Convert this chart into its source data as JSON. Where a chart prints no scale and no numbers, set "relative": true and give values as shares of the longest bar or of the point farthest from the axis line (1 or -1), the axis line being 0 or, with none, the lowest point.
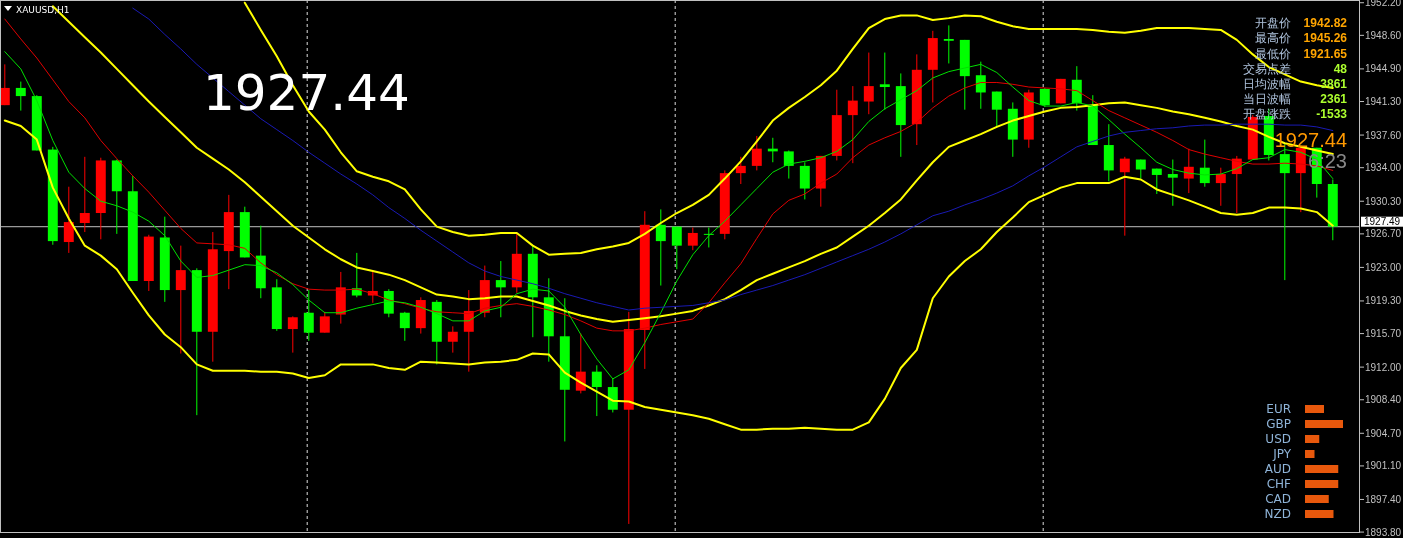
{
  "chart_data": [
    {
      "type": "candlestick",
      "title": "XAUUSD,H1",
      "categories": [
        null,
        null,
        null,
        null,
        null,
        null,
        null,
        null,
        null,
        null,
        null,
        null,
        null,
        null,
        null,
        null,
        null,
        null,
        null,
        null,
        null,
        null,
        null,
        null,
        null,
        null,
        null,
        null,
        null,
        null,
        null,
        null,
        null,
        null,
        null,
        null,
        null,
        null,
        null,
        null,
        null,
        null,
        null,
        null,
        null,
        null,
        null,
        null,
        null,
        null,
        null,
        null,
        null,
        null,
        null,
        null,
        null,
        null,
        null,
        null,
        null,
        null,
        null,
        null,
        null,
        null,
        null,
        null,
        null,
        null,
        null,
        null,
        null,
        null,
        null,
        null,
        null,
        null,
        null,
        null,
        null,
        null,
        null,
        null
      ],
      "ohlc": [
        [
          1940.9,
          1945.4,
          1940.9,
          1942.8
        ],
        [
          1942.8,
          1943.5,
          1940.3,
          1941.9
        ],
        [
          1941.9,
          1942.0,
          1935.9,
          1935.9
        ],
        [
          1936.0,
          1936.3,
          1925.5,
          1925.9
        ],
        [
          1925.8,
          1931.9,
          1924.6,
          1928.0
        ],
        [
          1927.9,
          1935.2,
          1926.9,
          1929.0
        ],
        [
          1929.0,
          1935.1,
          1926.1,
          1934.8
        ],
        [
          1934.8,
          1934.9,
          1926.7,
          1931.4
        ],
        [
          1931.4,
          1933.1,
          1921.5,
          1921.5
        ],
        [
          1921.5,
          1926.6,
          1920.4,
          1926.4
        ],
        [
          1926.3,
          1928.6,
          1919.2,
          1920.5
        ],
        [
          1920.5,
          1925.4,
          1913.5,
          1922.7
        ],
        [
          1922.7,
          1922.9,
          1906.7,
          1915.9
        ],
        [
          1915.9,
          1926.9,
          1912.6,
          1925.0
        ],
        [
          1924.8,
          1931.0,
          1920.6,
          1929.1
        ],
        [
          1929.1,
          1929.7,
          1924.1,
          1924.1
        ],
        [
          1924.3,
          1927.6,
          1919.6,
          1920.7
        ],
        [
          1920.8,
          1921.7,
          1916.0,
          1916.2
        ],
        [
          1916.2,
          1917.6,
          1913.6,
          1917.5
        ],
        [
          1918.0,
          1920.5,
          1914.9,
          1915.8
        ],
        [
          1915.8,
          1918.1,
          1915.8,
          1917.6
        ],
        [
          1917.8,
          1922.5,
          1916.8,
          1920.8
        ],
        [
          1920.7,
          1924.6,
          1919.7,
          1919.9
        ],
        [
          1919.9,
          1922.6,
          1919.1,
          1920.4
        ],
        [
          1920.4,
          1920.6,
          1917.5,
          1917.9
        ],
        [
          1918.0,
          1918.1,
          1914.9,
          1916.3
        ],
        [
          1916.3,
          1919.7,
          1915.7,
          1919.4
        ],
        [
          1919.2,
          1919.4,
          1912.3,
          1914.8
        ],
        [
          1914.8,
          1916.5,
          1913.6,
          1915.9
        ],
        [
          1915.9,
          1920.5,
          1911.5,
          1918.2
        ],
        [
          1918.0,
          1923.2,
          1917.5,
          1921.6
        ],
        [
          1921.6,
          1923.7,
          1917.5,
          1920.8
        ],
        [
          1920.8,
          1926.7,
          1920.2,
          1924.5
        ],
        [
          1924.5,
          1925.4,
          1915.3,
          1919.7
        ],
        [
          1919.7,
          1921.8,
          1912.6,
          1915.4
        ],
        [
          1915.4,
          1919.6,
          1903.8,
          1909.5
        ],
        [
          1909.4,
          1915.7,
          1909.1,
          1911.5
        ],
        [
          1911.5,
          1912.2,
          1906.6,
          1909.8
        ],
        [
          1909.8,
          1910.8,
          1907.0,
          1907.3
        ],
        [
          1907.3,
          1918.1,
          1894.7,
          1916.2
        ],
        [
          1916.1,
          1929.2,
          1911.8,
          1927.7
        ],
        [
          1927.7,
          1929.4,
          1921.0,
          1925.9
        ],
        [
          1927.5,
          1927.5,
          1922.8,
          1925.4
        ],
        [
          1925.4,
          1927.4,
          1924.9,
          1926.8
        ],
        [
          1926.7,
          1927.4,
          1925.2,
          1926.6
        ],
        [
          1926.7,
          1933.7,
          1926.1,
          1933.4
        ],
        [
          1933.4,
          1935.2,
          1932.2,
          1934.2
        ],
        [
          1934.2,
          1937.5,
          1933.7,
          1936.1
        ],
        [
          1936.1,
          1937.3,
          1934.6,
          1935.8
        ],
        [
          1935.8,
          1935.9,
          1932.8,
          1934.2
        ],
        [
          1934.2,
          1934.6,
          1930.5,
          1931.7
        ],
        [
          1931.7,
          1935.3,
          1929.7,
          1935.3
        ],
        [
          1935.3,
          1942.6,
          1934.8,
          1939.8
        ],
        [
          1939.8,
          1943.0,
          1934.5,
          1941.4
        ],
        [
          1941.3,
          1946.7,
          1939.9,
          1943.0
        ],
        [
          1943.2,
          1946.7,
          1940.4,
          1942.9
        ],
        [
          1943.0,
          1944.4,
          1935.2,
          1938.7
        ],
        [
          1938.8,
          1946.5,
          1936.5,
          1944.8
        ],
        [
          1944.8,
          1949.1,
          1941.2,
          1948.3
        ],
        [
          1948.2,
          1949.7,
          1945.5,
          1948.0
        ],
        [
          1948.1,
          1948.1,
          1940.4,
          1944.1
        ],
        [
          1944.2,
          1945.7,
          1940.5,
          1942.3
        ],
        [
          1942.4,
          1942.4,
          1938.5,
          1940.4
        ],
        [
          1940.5,
          1941.2,
          1935.2,
          1937.1
        ],
        [
          1937.1,
          1942.6,
          1936.2,
          1942.3
        ],
        [
          1942.7,
          1942.8,
          1940.7,
          1940.9
        ],
        [
          1941.1,
          1943.8,
          1941.1,
          1943.8
        ],
        [
          1943.7,
          1945.2,
          1940.3,
          1941.1
        ],
        [
          1940.9,
          1942.0,
          1936.5,
          1936.5
        ],
        [
          1936.5,
          1938.8,
          1932.5,
          1933.7
        ],
        [
          1933.5,
          1935.2,
          1926.5,
          1935.0
        ],
        [
          1934.9,
          1934.9,
          1932.8,
          1933.8
        ],
        [
          1933.9,
          1933.9,
          1931.1,
          1933.2
        ],
        [
          1933.3,
          1934.9,
          1929.8,
          1932.9
        ],
        [
          1932.8,
          1936.1,
          1931.2,
          1934.1
        ],
        [
          1934.0,
          1937.1,
          1931.9,
          1932.3
        ],
        [
          1932.3,
          1934.0,
          1929.8,
          1933.3
        ],
        [
          1933.3,
          1935.3,
          1929.0,
          1935.0
        ],
        [
          1934.9,
          1939.8,
          1934.9,
          1939.6
        ],
        [
          1939.7,
          1940.5,
          1934.8,
          1935.4
        ],
        [
          1935.5,
          1936.6,
          1921.6,
          1933.4
        ],
        [
          1933.4,
          1936.4,
          1929.1,
          1936.2
        ],
        [
          1936.2,
          1936.2,
          1930.7,
          1932.2
        ],
        [
          1932.2,
          1932.7,
          1926.0,
          1927.5
        ]
      ],
      "colors": [
        "#ff0000",
        "#00ff00",
        "#00ff00",
        "#00ff00",
        "#ff0000",
        "#ff0000",
        "#ff0000",
        "#00ff00",
        "#00ff00",
        "#ff0000",
        "#00ff00",
        "#ff0000",
        "#00ff00",
        "#ff0000",
        "#ff0000",
        "#00ff00",
        "#00ff00",
        "#00ff00",
        "#ff0000",
        "#00ff00",
        "#ff0000",
        "#ff0000",
        "#00ff00",
        "#ff0000",
        "#00ff00",
        "#00ff00",
        "#ff0000",
        "#00ff00",
        "#ff0000",
        "#ff0000",
        "#ff0000",
        "#00ff00",
        "#ff0000",
        "#00ff00",
        "#00ff00",
        "#00ff00",
        "#ff0000",
        "#00ff00",
        "#00ff00",
        "#ff0000",
        "#ff0000",
        "#00ff00",
        "#00ff00",
        "#ff0000",
        "#00ff00",
        "#ff0000",
        "#ff0000",
        "#ff0000",
        "#00ff00",
        "#00ff00",
        "#00ff00",
        "#ff0000",
        "#ff0000",
        "#ff0000",
        "#ff0000",
        "#00ff00",
        "#00ff00",
        "#ff0000",
        "#ff0000",
        "#00ff00",
        "#00ff00",
        "#00ff00",
        "#00ff00",
        "#00ff00",
        "#ff0000",
        "#00ff00",
        "#ff0000",
        "#00ff00",
        "#00ff00",
        "#00ff00",
        "#ff0000",
        "#00ff00",
        "#00ff00",
        "#00ff00",
        "#ff0000",
        "#00ff00",
        "#ff0000",
        "#ff0000",
        "#ff0000",
        "#00ff00",
        "#00ff00",
        "#ff0000",
        "#00ff00",
        "#00ff00"
      ],
      "series": [
        {
          "type": "line",
          "color": "#ffff00",
          "values": [
            null,
            null,
            null,
            null,
            null,
            null,
            null,
            null,
            null,
            null,
            null,
            null,
            null,
            null,
            null,
            1952.2,
            1949.2,
            1946.3,
            1943.1,
            1940.2,
            1938.2,
            1935.7,
            1933.6,
            1933.0,
            1932.5,
            1931.6,
            1929.4,
            1927.5,
            1926.9,
            1926.5,
            1926.6,
            1926.8,
            1926.8,
            1925.4,
            1924.4,
            1924.5,
            1924.6,
            1925.0,
            1925.3,
            1925.7,
            1926.7,
            1927.9,
            1929.0,
            1929.9,
            1931.0,
            1932.8,
            1934.7,
            1936.9,
            1939.2,
            1940.6,
            1941.8,
            1943.1,
            1944.7,
            1947.1,
            1949.4,
            1950.4,
            1950.8,
            1950.8,
            1950.3,
            1950.5,
            1950.8,
            1950.7,
            1950.1,
            1949.6,
            1949.3,
            1949.3,
            1949.3,
            1949.3,
            1949.2,
            1949.0,
            1948.9,
            1949.1,
            1949.4,
            1949.4,
            1949.4,
            1949.3,
            1949.2,
            1948.1,
            1946.5,
            1945.1,
            1944.3,
            1943.5,
            1943.1,
            1942.8
          ]
        },
        {
          "type": "line",
          "color": "#ffff00",
          "values": [
            null,
            null,
            null,
            1951.8,
            1950.1,
            1948.4,
            1946.7,
            1944.9,
            1943.1,
            1941.3,
            1939.6,
            1937.9,
            1936.2,
            1935.0,
            1933.8,
            1932.4,
            1930.8,
            1929.2,
            1927.6,
            1926.3,
            1925.0,
            1923.9,
            1923.0,
            1922.6,
            1922.2,
            1921.6,
            1920.8,
            1920.0,
            1919.8,
            1919.5,
            1919.6,
            1919.8,
            1919.8,
            1919.3,
            1918.8,
            1918.2,
            1917.7,
            1917.3,
            1917.0,
            1917.2,
            1917.4,
            1917.6,
            1917.9,
            1918.2,
            1918.8,
            1919.5,
            1920.5,
            1921.6,
            1922.3,
            1923.0,
            1923.7,
            1924.5,
            1925.2,
            1926.4,
            1927.6,
            1929.0,
            1930.5,
            1932.6,
            1934.6,
            1936.3,
            1937.0,
            1937.7,
            1938.5,
            1939.2,
            1939.7,
            1940.2,
            1940.6,
            1940.7,
            1940.9,
            1941.1,
            1941.2,
            1940.9,
            1940.6,
            1940.2,
            1939.9,
            1939.5,
            1939.1,
            1938.6,
            1938.2,
            1937.4,
            1936.7,
            1936.3,
            1935.9,
            1935.5
          ]
        },
        {
          "type": "line",
          "color": "#ffff00",
          "values": [
            1939.2,
            1938.6,
            1937.1,
            1931.8,
            1928.4,
            1925.4,
            1924.3,
            1922.8,
            1920.2,
            1917.7,
            1915.6,
            1914.2,
            1912.3,
            1911.6,
            1911.6,
            1911.6,
            1911.5,
            1911.5,
            1911.3,
            1910.8,
            1911.1,
            1912.3,
            1912.3,
            1912.3,
            1911.9,
            1911.7,
            1912.6,
            1912.5,
            1912.4,
            1912.3,
            1912.5,
            1912.6,
            1912.8,
            1913.5,
            1913.4,
            1911.4,
            1910.3,
            1909.3,
            1908.3,
            1908.2,
            1907.6,
            1907.3,
            1907.0,
            1906.7,
            1906.3,
            1905.7,
            1905.1,
            1905.1,
            1905.2,
            1905.2,
            1905.3,
            1905.2,
            1905.1,
            1905.1,
            1905.9,
            1908.5,
            1911.9,
            1913.9,
            1919.6,
            1922.0,
            1923.7,
            1925.0,
            1926.9,
            1928.5,
            1930.2,
            1931.0,
            1931.8,
            1932.3,
            1932.3,
            1932.3,
            1933.0,
            1932.7,
            1931.6,
            1931.0,
            1930.4,
            1929.7,
            1929.0,
            1928.8,
            1929.0,
            1929.6,
            1929.6,
            1929.5,
            1929.1,
            1927.6
          ]
        },
        {
          "type": "line",
          "color": "#e00000",
          "values": [
            1950.4,
            1948.2,
            1946.1,
            1943.7,
            1941.3,
            1939.5,
            1937.0,
            1935.0,
            1933.1,
            1931.3,
            1929.3,
            1927.3,
            1925.7,
            1925.6,
            1925.5,
            1925.1,
            1923.5,
            1922.2,
            1921.2,
            1920.6,
            1920.5,
            1920.5,
            1920.6,
            1920.1,
            1919.4,
            1919.0,
            1918.5,
            1918.1,
            1918.0,
            1917.9,
            1918.5,
            1918.8,
            1919.0,
            1918.7,
            1918.3,
            1917.8,
            1917.1,
            1916.3,
            1916.0,
            1916.0,
            1916.3,
            1916.7,
            1917.0,
            1917.3,
            1919.1,
            1921.3,
            1923.4,
            1926.2,
            1928.9,
            1930.4,
            1931.1,
            1932.3,
            1933.3,
            1935.1,
            1936.5,
            1937.3,
            1938.0,
            1939.0,
            1940.6,
            1941.9,
            1942.8,
            1943.4,
            1943.4,
            1943.2,
            1942.9,
            1942.8,
            1942.7,
            1942.5,
            1941.4,
            1940.3,
            1939.5,
            1938.7,
            1937.9,
            1937.0,
            1936.0,
            1935.5,
            1935.1,
            1934.7,
            1934.4,
            1934.4,
            1934.5,
            1934.4,
            1934.2,
            1933.7
          ]
        },
        {
          "type": "line",
          "color": "#00e000",
          "values": [
            1946.8,
            1944.9,
            1941.4,
            1937.0,
            1933.5,
            1931.7,
            1930.3,
            1929.8,
            1929.1,
            1928.1,
            1926.5,
            1923.7,
            1921.9,
            1922.1,
            1922.7,
            1923.3,
            1923.2,
            1922.4,
            1921.1,
            1919.4,
            1918.0,
            1918.0,
            1918.5,
            1918.9,
            1919.3,
            1919.1,
            1918.6,
            1917.9,
            1917.1,
            1917.1,
            1918.2,
            1918.6,
            1920.1,
            1920.6,
            1920.4,
            1918.6,
            1915.6,
            1912.9,
            1910.7,
            1911.7,
            1914.7,
            1918.0,
            1921.5,
            1924.4,
            1926.5,
            1928.1,
            1929.9,
            1931.7,
            1933.5,
            1934.4,
            1934.7,
            1935.1,
            1935.8,
            1937.1,
            1939.1,
            1940.5,
            1941.5,
            1942.5,
            1943.9,
            1944.6,
            1945.0,
            1945.4,
            1944.5,
            1942.9,
            1941.4,
            1940.8,
            1940.8,
            1941.2,
            1940.8,
            1939.3,
            1937.7,
            1936.2,
            1934.6,
            1933.8,
            1933.4,
            1933.2,
            1933.3,
            1933.9,
            1934.9,
            1935.1,
            1936.0,
            1935.7,
            1934.9,
            1932.8
          ]
        },
        {
          "type": "line",
          "color": "#1a1ab4",
          "values": [
            null,
            null,
            null,
            null,
            null,
            null,
            null,
            null,
            1951.6,
            1950.4,
            1948.7,
            1947.1,
            1945.4,
            1943.9,
            1942.4,
            1940.9,
            1939.4,
            1938.2,
            1937.0,
            1935.7,
            1934.5,
            1933.3,
            1932.2,
            1931.0,
            1929.6,
            1928.4,
            1927.1,
            1925.9,
            1924.7,
            1923.5,
            1922.6,
            1922.0,
            1921.6,
            1921.2,
            1920.7,
            1920.1,
            1919.6,
            1919.1,
            1918.7,
            1918.3,
            1918.5,
            1918.6,
            1918.7,
            1918.8,
            1919.1,
            1919.4,
            1920.0,
            1920.5,
            1921.0,
            1921.6,
            1922.2,
            1922.9,
            1923.6,
            1924.3,
            1925.0,
            1925.8,
            1926.7,
            1927.7,
            1928.7,
            1929.2,
            1929.9,
            1930.5,
            1931.2,
            1932.0,
            1933.1,
            1934.1,
            1935.2,
            1936.3,
            1936.9,
            1937.5,
            1937.9,
            1938.1,
            1938.3,
            1938.4,
            1938.6,
            1938.7,
            1938.7,
            1938.8,
            1938.8,
            1938.8,
            1938.7,
            1938.7,
            1938.5,
            1938.1
          ]
        }
      ],
      "ylim": [
        1893.7,
        1952.5
      ],
      "yticks": [
        {
          "value": 1952.2,
          "label": "1952.20"
        },
        {
          "value": 1948.6,
          "label": "1948.60"
        },
        {
          "value": 1944.9,
          "label": "1944.90"
        },
        {
          "value": 1941.3,
          "label": "1941.30"
        },
        {
          "value": 1937.6,
          "label": "1937.60"
        },
        {
          "value": 1934.0,
          "label": "1934.00"
        },
        {
          "value": 1930.3,
          "label": "1930.30"
        },
        {
          "value": 1926.7,
          "label": "1926.70"
        },
        {
          "value": 1923.0,
          "label": "1923.00"
        },
        {
          "value": 1919.3,
          "label": "1919.30"
        },
        {
          "value": 1915.7,
          "label": "1915.70"
        },
        {
          "value": 1912.0,
          "label": "1912.00"
        },
        {
          "value": 1908.4,
          "label": "1908.40"
        },
        {
          "value": 1904.7,
          "label": "1904.70"
        },
        {
          "value": 1901.1,
          "label": "1901.10"
        },
        {
          "value": 1897.4,
          "label": "1897.40"
        },
        {
          "value": 1893.8,
          "label": "1893.80"
        }
      ],
      "tick_labels": "y",
      "grid": "x",
      "ref_lines": [
        {
          "axis": "y",
          "value": 1927.49,
          "label": "1927.49",
          "color": "#c0c0c0"
        }
      ],
      "annotations": [
        "1927.44",
        "开盘价",
        "1942.82",
        "最高价",
        "1945.26",
        "最低价",
        "1921.65",
        "交易点差",
        "48",
        "日均波幅",
        "3861",
        "当日波幅",
        "2361",
        "开盘涨跌",
        "-1533",
        "1927.44",
        "6:23"
      ]
    },
    {
      "type": "bar",
      "orientation": "horizontal",
      "relative": true,
      "color": "#e8580c",
      "categories": [
        "EUR",
        "GBP",
        "USD",
        "JPY",
        "AUD",
        "CHF",
        "CAD",
        "NZD"
      ],
      "values": [
        0.5,
        1,
        0.375,
        0.25,
        0.875,
        0.875,
        0.625,
        0.75
      ]
    }
  ]
}
